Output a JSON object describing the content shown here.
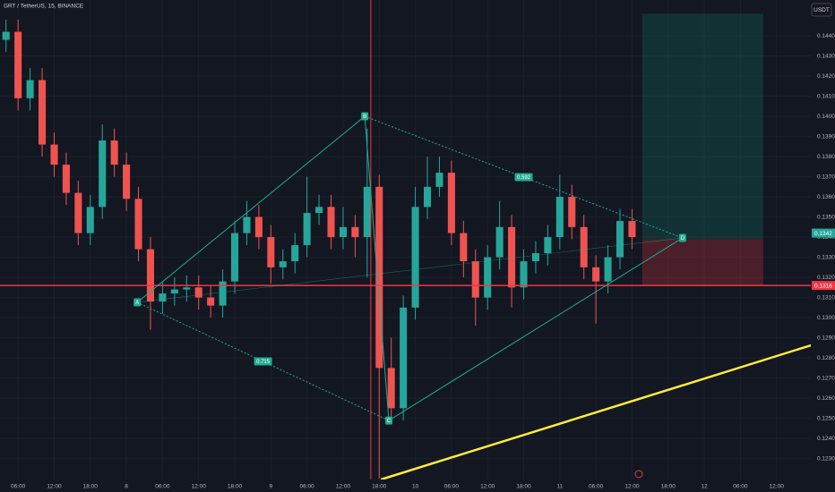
{
  "chart_data": {
    "type": "candlestick",
    "title": "GRT / TetherUS, 15, BINANCE",
    "currency": "USDT",
    "x": [
      4,
      6,
      8,
      10,
      12,
      14,
      16,
      18,
      20,
      22,
      24,
      26,
      28,
      30,
      32,
      34,
      36,
      38,
      40,
      42,
      44,
      46,
      48,
      50,
      52,
      54,
      56,
      58,
      60,
      62,
      64,
      66,
      68,
      70,
      72,
      74,
      76,
      78,
      80,
      82,
      84,
      86,
      88,
      90,
      92,
      94,
      96,
      98,
      100,
      102,
      104,
      106,
      108
    ],
    "open": [
      0.1438,
      0.1442,
      0.1409,
      0.1418,
      0.1386,
      0.1376,
      0.1362,
      0.1342,
      0.1355,
      0.1388,
      0.1376,
      0.1359,
      0.1334,
      0.1308,
      0.1312,
      0.1314,
      0.1315,
      0.131,
      0.1306,
      0.1318,
      0.1342,
      0.135,
      0.134,
      0.1325,
      0.1328,
      0.1336,
      0.1352,
      0.1355,
      0.134,
      0.1345,
      0.134,
      0.1365,
      0.1275,
      0.1255,
      0.1305,
      0.1355,
      0.1365,
      0.1372,
      0.1342,
      0.1328,
      0.131,
      0.133,
      0.1345,
      0.1315,
      0.1328,
      0.1332,
      0.134,
      0.136,
      0.1345,
      0.1325,
      0.1318,
      0.133,
      0.1348
    ],
    "high": [
      0.1448,
      0.1448,
      0.1424,
      0.1424,
      0.1392,
      0.1382,
      0.1368,
      0.1361,
      0.1396,
      0.1394,
      0.1382,
      0.1365,
      0.134,
      0.1318,
      0.132,
      0.1321,
      0.1321,
      0.1316,
      0.1324,
      0.1348,
      0.1358,
      0.1356,
      0.1346,
      0.1334,
      0.1342,
      0.137,
      0.1361,
      0.1361,
      0.1355,
      0.1351,
      0.1394,
      0.1371,
      0.129,
      0.1311,
      0.1365,
      0.138,
      0.138,
      0.1378,
      0.1348,
      0.1334,
      0.1336,
      0.1358,
      0.1351,
      0.1334,
      0.1338,
      0.1346,
      0.1371,
      0.1366,
      0.1351,
      0.1331,
      0.1336,
      0.1354,
      0.1354
    ],
    "low": [
      0.1432,
      0.1403,
      0.1403,
      0.138,
      0.137,
      0.1356,
      0.1336,
      0.1336,
      0.1349,
      0.137,
      0.1353,
      0.1328,
      0.1294,
      0.1302,
      0.1306,
      0.1308,
      0.1304,
      0.13,
      0.13,
      0.1312,
      0.1336,
      0.1334,
      0.1317,
      0.1319,
      0.1322,
      0.133,
      0.1346,
      0.1334,
      0.1334,
      0.133,
      0.132,
      0.122,
      0.125,
      0.1249,
      0.1299,
      0.1349,
      0.136,
      0.1336,
      0.132,
      0.1296,
      0.1304,
      0.1324,
      0.1305,
      0.1309,
      0.1322,
      0.1326,
      0.1334,
      0.1339,
      0.1319,
      0.1297,
      0.1312,
      0.1324,
      0.1334
    ],
    "close": [
      0.1442,
      0.1409,
      0.1418,
      0.1386,
      0.1376,
      0.1362,
      0.1342,
      0.1355,
      0.1388,
      0.1376,
      0.1359,
      0.1334,
      0.1308,
      0.1312,
      0.1314,
      0.1315,
      0.131,
      0.1306,
      0.1318,
      0.1342,
      0.135,
      0.134,
      0.1325,
      0.1328,
      0.1336,
      0.1352,
      0.1355,
      0.134,
      0.1345,
      0.134,
      0.1365,
      0.1275,
      0.1255,
      0.1305,
      0.1355,
      0.1365,
      0.1372,
      0.1342,
      0.1328,
      0.131,
      0.133,
      0.1345,
      0.1315,
      0.1328,
      0.1332,
      0.134,
      0.136,
      0.1345,
      0.1325,
      0.1318,
      0.133,
      0.1348,
      0.134
    ],
    "up_color": "#26a69a",
    "down_color": "#ef5350",
    "xlim": [
      3,
      137.7
    ],
    "ylim": [
      0.12196,
      0.14578
    ],
    "xticks": [
      {
        "value": 6,
        "label": "06:00"
      },
      {
        "value": 12,
        "label": "12:00"
      },
      {
        "value": 18,
        "label": "18:00"
      },
      {
        "value": 24,
        "label": "8"
      },
      {
        "value": 30,
        "label": "06:00"
      },
      {
        "value": 36,
        "label": "12:00"
      },
      {
        "value": 42,
        "label": "18:00"
      },
      {
        "value": 48,
        "label": "9"
      },
      {
        "value": 54,
        "label": "06:00"
      },
      {
        "value": 60,
        "label": "12:00"
      },
      {
        "value": 66,
        "label": "18:00"
      },
      {
        "value": 72,
        "label": "10"
      },
      {
        "value": 78,
        "label": "06:00"
      },
      {
        "value": 84,
        "label": "12:00"
      },
      {
        "value": 90,
        "label": "18:00"
      },
      {
        "value": 96,
        "label": "11"
      },
      {
        "value": 102,
        "label": "06:00"
      },
      {
        "value": 108,
        "label": "12:00"
      },
      {
        "value": 114,
        "label": "18:00"
      },
      {
        "value": 120,
        "label": "12"
      },
      {
        "value": 126,
        "label": "06:00"
      },
      {
        "value": 132,
        "label": "12:00"
      }
    ],
    "yticks": [
      {
        "value": 0.123,
        "label": "0.1230"
      },
      {
        "value": 0.124,
        "label": "0.1240"
      },
      {
        "value": 0.125,
        "label": "0.1250"
      },
      {
        "value": 0.126,
        "label": "0.1260"
      },
      {
        "value": 0.127,
        "label": "0.1270"
      },
      {
        "value": 0.128,
        "label": "0.1280"
      },
      {
        "value": 0.129,
        "label": "0.1290"
      },
      {
        "value": 0.13,
        "label": "0.1300"
      },
      {
        "value": 0.131,
        "label": "0.1310"
      },
      {
        "value": 0.132,
        "label": "0.1320"
      },
      {
        "value": 0.133,
        "label": "0.1330"
      },
      {
        "value": 0.134,
        "label": "0.1340"
      },
      {
        "value": 0.135,
        "label": "0.1350"
      },
      {
        "value": 0.136,
        "label": "0.1360"
      },
      {
        "value": 0.137,
        "label": "0.1370"
      },
      {
        "value": 0.138,
        "label": "0.1380"
      },
      {
        "value": 0.139,
        "label": "0.1390"
      },
      {
        "value": 0.14,
        "label": "0.1400"
      },
      {
        "value": 0.141,
        "label": "0.1410"
      },
      {
        "value": 0.142,
        "label": "0.1420"
      },
      {
        "value": 0.143,
        "label": "0.1430"
      },
      {
        "value": 0.144,
        "label": "0.1440"
      }
    ],
    "grid": true,
    "pattern": {
      "color": "#22ab94",
      "points": [
        {
          "label": "A",
          "x": 25.8,
          "y": 0.13076
        },
        {
          "label": "B",
          "x": 63.6,
          "y": 0.14
        },
        {
          "label": "C",
          "x": 67.6,
          "y": 0.12489
        },
        {
          "label": "D",
          "x": 116.4,
          "y": 0.13396
        }
      ],
      "ratios": [
        0.715,
        0.592
      ]
    },
    "horizontal_line": {
      "y": 0.1316,
      "color": "#f23645"
    },
    "vertical_line": {
      "x": 64.6,
      "color": "#f23645"
    },
    "trend_line": {
      "color": "#ffeb3b",
      "x": [
        66.3,
        138.2
      ],
      "y": [
        0.12196,
        0.12867
      ]
    },
    "position": {
      "x": [
        109.7,
        129.8
      ],
      "target": 0.1451,
      "entry": 0.1339,
      "stop": 0.1316
    },
    "price_tags": [
      {
        "value": 0.1342,
        "label": "0.1342",
        "color": "#26a69a"
      },
      {
        "value": 0.1316,
        "label": "0.1316",
        "color": "#f23645"
      }
    ]
  }
}
